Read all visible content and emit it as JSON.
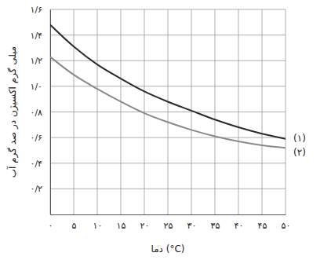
{
  "chart_data": {
    "type": "line",
    "x_label": "دما (°C)",
    "y_label": "میلی گرم اکسیژن در صد گرم آب",
    "x": [
      0,
      5,
      10,
      15,
      20,
      25,
      30,
      35,
      40,
      45,
      50
    ],
    "series": [
      {
        "name": "(۱)",
        "color": "#2b2b2b",
        "values": [
          1.48,
          1.31,
          1.17,
          1.06,
          0.96,
          0.88,
          0.81,
          0.74,
          0.68,
          0.63,
          0.59
        ]
      },
      {
        "name": "(۲)",
        "color": "#8a8a8a",
        "values": [
          1.23,
          1.09,
          0.98,
          0.88,
          0.79,
          0.72,
          0.66,
          0.61,
          0.57,
          0.54,
          0.52
        ]
      }
    ],
    "xlim": [
      0,
      50
    ],
    "ylim": [
      0,
      1.6
    ],
    "xticks": [
      {
        "value": 0,
        "label": "۰"
      },
      {
        "value": 5,
        "label": "۵"
      },
      {
        "value": 10,
        "label": "۱۰"
      },
      {
        "value": 15,
        "label": "۱۵"
      },
      {
        "value": 20,
        "label": "۲۰"
      },
      {
        "value": 25,
        "label": "۲۵"
      },
      {
        "value": 30,
        "label": "۳۰"
      },
      {
        "value": 35,
        "label": "۳۵"
      },
      {
        "value": 40,
        "label": "۴۰"
      },
      {
        "value": 45,
        "label": "۴۵"
      },
      {
        "value": 50,
        "label": "۵۰"
      }
    ],
    "yticks": [
      {
        "value": 0.2,
        "label": "۰/۲"
      },
      {
        "value": 0.4,
        "label": "۰/۴"
      },
      {
        "value": 0.6,
        "label": "۰/۶"
      },
      {
        "value": 0.8,
        "label": "۰/۸"
      },
      {
        "value": 1.0,
        "label": "۱/۰"
      },
      {
        "value": 1.2,
        "label": "۱/۲"
      },
      {
        "value": 1.4,
        "label": "۱/۴"
      },
      {
        "value": 1.6,
        "label": "۱/۶"
      }
    ],
    "grid": true
  }
}
